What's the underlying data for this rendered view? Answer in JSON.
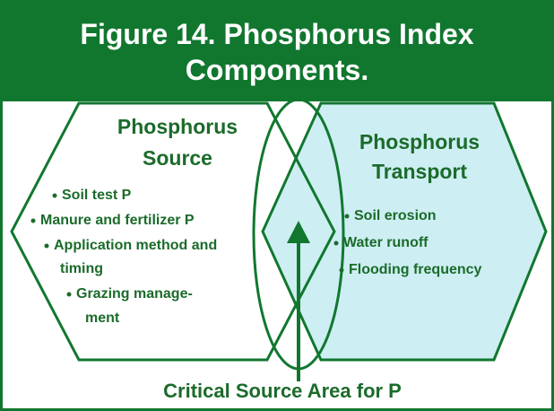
{
  "header": {
    "title": "Figure 14.  Phosphorus Index Components."
  },
  "source": {
    "heading": [
      "Phosphorus",
      "Source"
    ],
    "items": [
      [
        "Soil test P"
      ],
      [
        "Manure and fertilizer P"
      ],
      [
        "Application method and",
        "timing"
      ],
      [
        "Grazing manage-",
        "ment"
      ]
    ]
  },
  "transport": {
    "heading": [
      "Phosphorus",
      "Transport"
    ],
    "items": [
      [
        "Soil erosion"
      ],
      [
        "Water runoff"
      ],
      [
        "Flooding frequency"
      ]
    ]
  },
  "footer": {
    "label": "Critical Source Area for P"
  }
}
